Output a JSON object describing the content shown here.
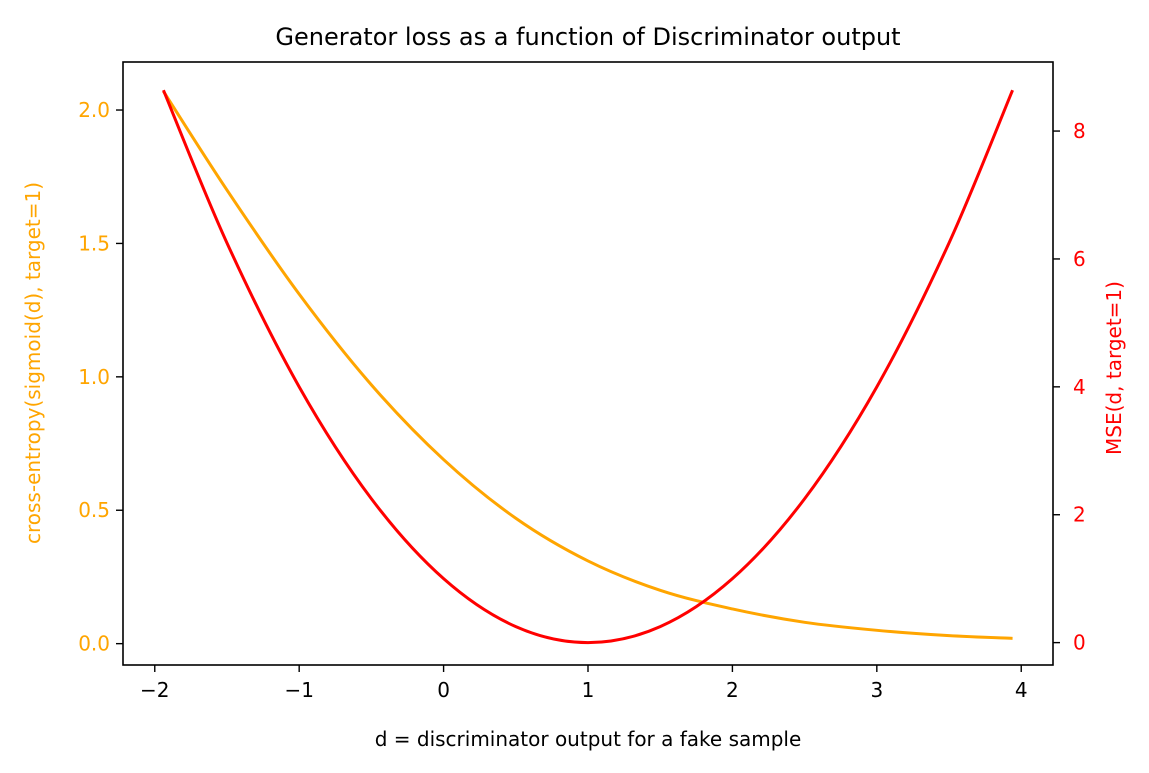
{
  "chart_data": {
    "type": "line",
    "title": "Generator loss as a function of Discriminator output",
    "xlabel": "d = discriminator output for a fake sample",
    "ylabel_left": "cross-entropy(sigmoid(d), target=1)",
    "ylabel_right": "MSE(d, target=1)",
    "xlim": [
      -2.22,
      4.22
    ],
    "ylim_left": [
      -0.08,
      2.18
    ],
    "ylim_right": [
      -0.35,
      9.08
    ],
    "x_ticks": [
      -2,
      -1,
      0,
      1,
      2,
      3,
      4
    ],
    "x_tick_labels": [
      "−2",
      "−1",
      "0",
      "1",
      "2",
      "3",
      "4"
    ],
    "y_left_ticks": [
      0.0,
      0.5,
      1.0,
      1.5,
      2.0
    ],
    "y_left_tick_labels": [
      "0.0",
      "0.5",
      "1.0",
      "1.5",
      "2.0"
    ],
    "y_right_ticks": [
      0,
      2,
      4,
      6,
      8
    ],
    "y_right_tick_labels": [
      "0",
      "2",
      "4",
      "6",
      "8"
    ],
    "grid": false,
    "legend": "none",
    "colors": {
      "left_axis": "#ffa500",
      "right_axis": "#ff0000",
      "frame": "#000000"
    },
    "series": [
      {
        "axis": "left",
        "color": "#ffa500",
        "x": [
          -1.94,
          -1.5,
          -1.0,
          -0.5,
          0.0,
          0.5,
          1.0,
          1.5,
          2.0,
          2.5,
          3.0,
          3.5,
          3.94
        ],
        "y": [
          2.07,
          1.7,
          1.31,
          0.97,
          0.69,
          0.47,
          0.31,
          0.2,
          0.13,
          0.08,
          0.05,
          0.03,
          0.02
        ]
      },
      {
        "axis": "right",
        "color": "#ff0000",
        "x": [
          -1.94,
          -1.5,
          -1.0,
          -0.5,
          0.0,
          0.5,
          1.0,
          1.5,
          2.0,
          2.5,
          3.0,
          3.5,
          3.94
        ],
        "y": [
          8.64,
          6.25,
          4.0,
          2.25,
          1.0,
          0.25,
          0.0,
          0.25,
          1.0,
          2.25,
          4.0,
          6.25,
          8.64
        ]
      }
    ]
  }
}
